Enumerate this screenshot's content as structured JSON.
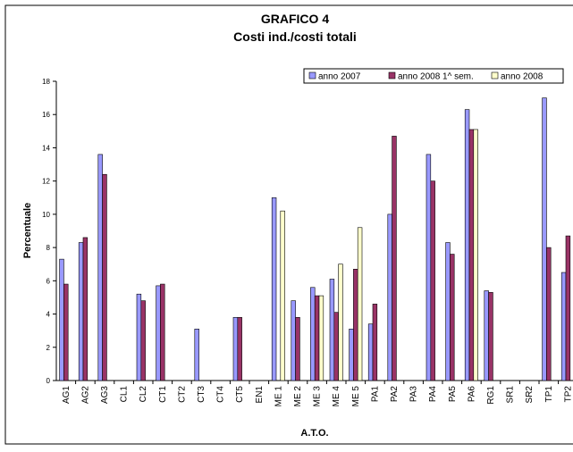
{
  "chart_data": {
    "type": "bar",
    "title": [
      "GRAFICO 4",
      "Costi ind./costi totali"
    ],
    "y_label": "Percentuale",
    "x_label": "A.T.O.",
    "categories": [
      "AG1",
      "AG2",
      "AG3",
      "CL1",
      "CL2",
      "CT1",
      "CT2",
      "CT3",
      "CT4",
      "CT5",
      "EN1",
      "ME 1",
      "ME 2",
      "ME 3",
      "ME 4",
      "ME 5",
      "PA1",
      "PA2",
      "PA3",
      "PA4",
      "PA5",
      "PA6",
      "RG1",
      "SR1",
      "SR2",
      "TP1",
      "TP2"
    ],
    "series": [
      {
        "name": "anno 2007",
        "color": "#9999ff",
        "values": [
          7.3,
          8.3,
          13.6,
          null,
          5.2,
          5.7,
          null,
          3.1,
          null,
          3.8,
          null,
          11.0,
          4.8,
          5.6,
          6.1,
          3.1,
          3.4,
          10.0,
          null,
          13.6,
          8.3,
          16.3,
          5.4,
          null,
          null,
          17.0,
          6.5
        ]
      },
      {
        "name": "anno 2008 1^ sem.",
        "color": "#993366",
        "values": [
          5.8,
          8.6,
          12.4,
          null,
          4.8,
          5.8,
          null,
          null,
          null,
          3.8,
          null,
          null,
          3.8,
          5.1,
          4.1,
          6.7,
          4.6,
          14.7,
          null,
          12.0,
          7.6,
          15.1,
          5.3,
          null,
          null,
          8.0,
          8.7
        ]
      },
      {
        "name": "anno 2008",
        "color": "#ffffcc",
        "values": [
          null,
          null,
          null,
          null,
          null,
          null,
          null,
          null,
          null,
          null,
          null,
          10.2,
          null,
          5.1,
          7.0,
          9.2,
          null,
          null,
          null,
          null,
          null,
          15.1,
          null,
          null,
          null,
          null,
          null
        ]
      }
    ],
    "ylim": [
      0,
      18
    ],
    "yticks": [
      0,
      2,
      4,
      6,
      8,
      10,
      12,
      14,
      16,
      18
    ],
    "legend": "top-right"
  }
}
